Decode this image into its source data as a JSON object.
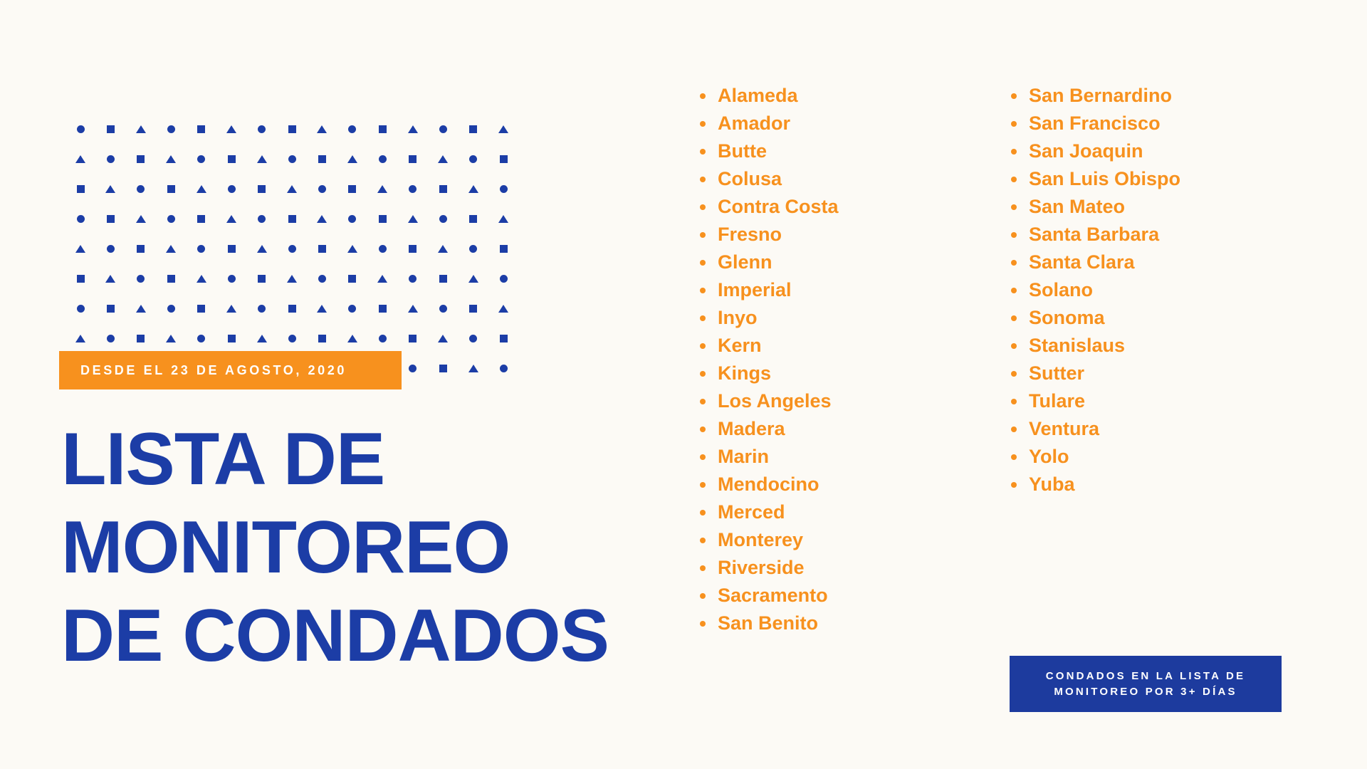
{
  "slide": {
    "background": "#FCFAF5"
  },
  "colors": {
    "brand_blue": "#1C3DA6",
    "badge_blue": "#1D3B9E",
    "orange": "#F7911E",
    "text_on_color": "#FFFFFF"
  },
  "date_banner": {
    "label": "DESDE EL 23 DE AGOSTO, 2020"
  },
  "title": {
    "lines": [
      "LISTA DE",
      "MONITOREO",
      "DE CONDADOS"
    ]
  },
  "county_columns": [
    {
      "items": [
        "Alameda",
        "Amador",
        "Butte",
        "Colusa",
        "Contra Costa",
        "Fresno",
        "Glenn",
        "Imperial",
        "Inyo",
        "Kern",
        "Kings",
        "Los Angeles",
        "Madera",
        "Marin",
        "Mendocino",
        "Merced",
        "Monterey",
        "Riverside",
        "Sacramento",
        "San Benito"
      ]
    },
    {
      "items": [
        "San Bernardino",
        "San Francisco",
        "San Joaquin",
        "San Luis Obispo",
        "San Mateo",
        "Santa Barbara",
        "Santa Clara",
        "Solano",
        "Sonoma",
        "Stanislaus",
        "Sutter",
        "Tulare",
        "Ventura",
        "Yolo",
        "Yuba"
      ]
    }
  ],
  "footer_badge": {
    "lines": [
      "CONDADOS EN LA LISTA DE",
      "MONITOREO POR 3+ DÍAS"
    ]
  },
  "decorative_pattern": {
    "rows": 9,
    "cols": 15,
    "cycle": [
      "circle",
      "square",
      "triangle"
    ]
  }
}
